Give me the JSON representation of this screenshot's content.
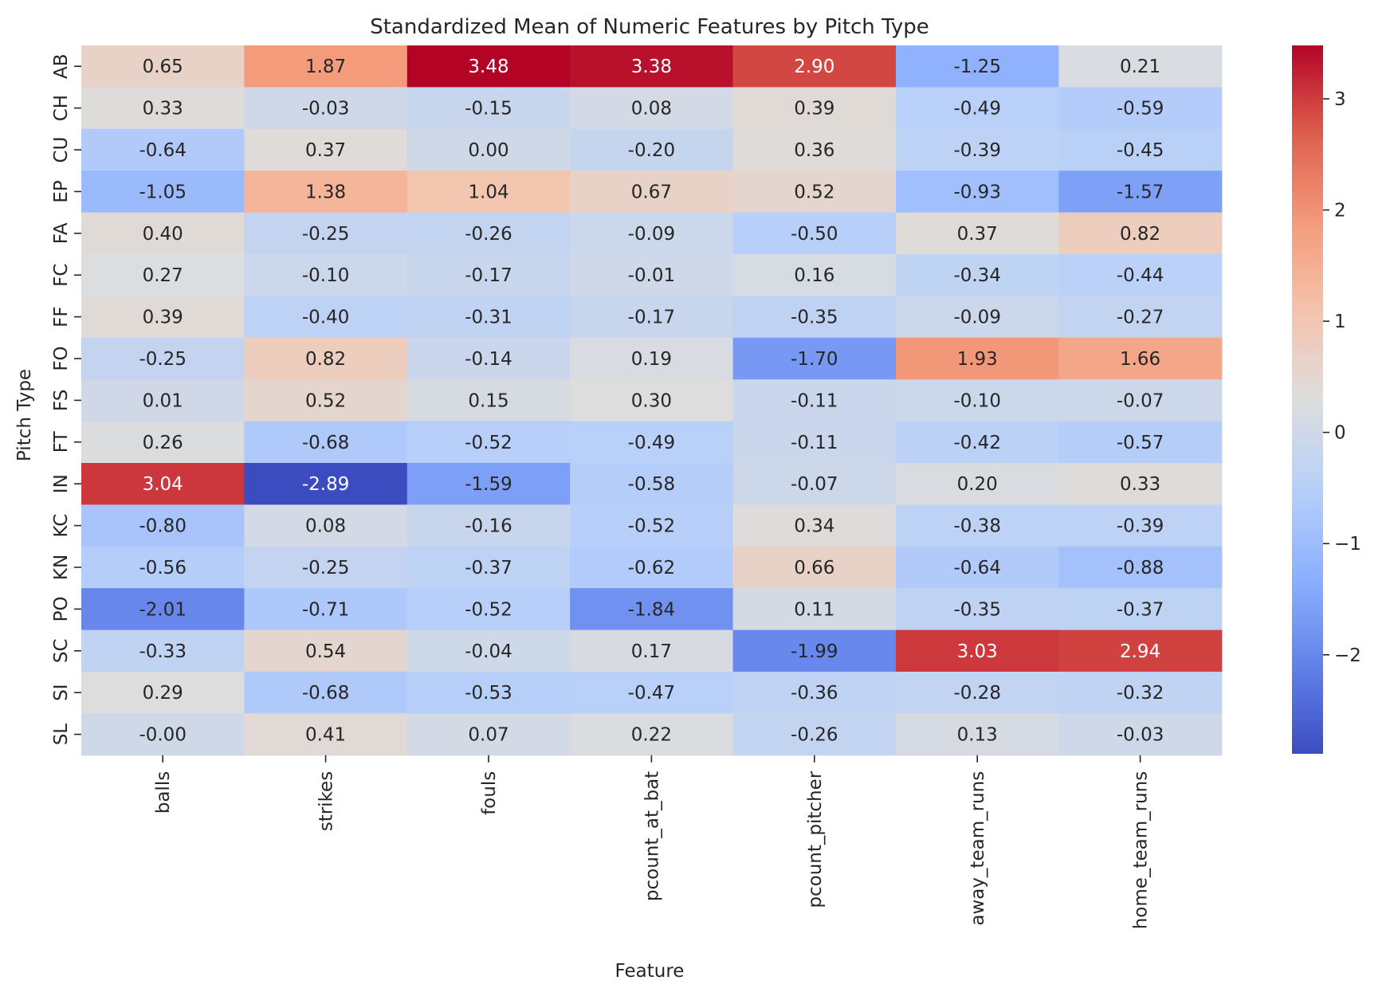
{
  "chart_data": {
    "type": "heatmap",
    "title": "Standardized Mean of Numeric Features by Pitch Type",
    "xlabel": "Feature",
    "ylabel": "Pitch Type",
    "colormap": "coolwarm",
    "color_low": "#3b4cc0",
    "color_mid": "#dddddd",
    "color_high": "#b40426",
    "vmin": -2.89,
    "vmax": 3.48,
    "colorbar_ticks": [
      "−2",
      "−1",
      "0",
      "1",
      "2",
      "3"
    ],
    "x": [
      "balls",
      "strikes",
      "fouls",
      "pcount_at_bat",
      "pcount_pitcher",
      "away_team_runs",
      "home_team_runs"
    ],
    "y": [
      "AB",
      "CH",
      "CU",
      "EP",
      "FA",
      "FC",
      "FF",
      "FO",
      "FS",
      "FT",
      "IN",
      "KC",
      "KN",
      "PO",
      "SC",
      "SI",
      "SL"
    ],
    "values": [
      [
        0.65,
        1.87,
        3.48,
        3.38,
        2.9,
        -1.25,
        0.21
      ],
      [
        0.33,
        -0.03,
        -0.15,
        0.08,
        0.39,
        -0.49,
        -0.59
      ],
      [
        -0.64,
        0.37,
        0.0,
        -0.2,
        0.36,
        -0.39,
        -0.45
      ],
      [
        -1.05,
        1.38,
        1.04,
        0.67,
        0.52,
        -0.93,
        -1.57
      ],
      [
        0.4,
        -0.25,
        -0.26,
        -0.09,
        -0.5,
        0.37,
        0.82
      ],
      [
        0.27,
        -0.1,
        -0.17,
        -0.01,
        0.16,
        -0.34,
        -0.44
      ],
      [
        0.39,
        -0.4,
        -0.31,
        -0.17,
        -0.35,
        -0.09,
        -0.27
      ],
      [
        -0.25,
        0.82,
        -0.14,
        0.19,
        -1.7,
        1.93,
        1.66
      ],
      [
        0.01,
        0.52,
        0.15,
        0.3,
        -0.11,
        -0.1,
        -0.07
      ],
      [
        0.26,
        -0.68,
        -0.52,
        -0.49,
        -0.11,
        -0.42,
        -0.57
      ],
      [
        3.04,
        -2.89,
        -1.59,
        -0.58,
        -0.07,
        0.2,
        0.33
      ],
      [
        -0.8,
        0.08,
        -0.16,
        -0.52,
        0.34,
        -0.38,
        -0.39
      ],
      [
        -0.56,
        -0.25,
        -0.37,
        -0.62,
        0.66,
        -0.64,
        -0.88
      ],
      [
        -2.01,
        -0.71,
        -0.52,
        -1.84,
        0.11,
        -0.35,
        -0.37
      ],
      [
        -0.33,
        0.54,
        -0.04,
        0.17,
        -1.99,
        3.03,
        2.94
      ],
      [
        0.29,
        -0.68,
        -0.53,
        -0.47,
        -0.36,
        -0.28,
        -0.32
      ],
      [
        -0.0,
        0.41,
        0.07,
        0.22,
        -0.26,
        0.13,
        -0.03
      ]
    ],
    "cell_labels": [
      [
        "0.65",
        "1.87",
        "3.48",
        "3.38",
        "2.90",
        "-1.25",
        "0.21"
      ],
      [
        "0.33",
        "-0.03",
        "-0.15",
        "0.08",
        "0.39",
        "-0.49",
        "-0.59"
      ],
      [
        "-0.64",
        "0.37",
        "0.00",
        "-0.20",
        "0.36",
        "-0.39",
        "-0.45"
      ],
      [
        "-1.05",
        "1.38",
        "1.04",
        "0.67",
        "0.52",
        "-0.93",
        "-1.57"
      ],
      [
        "0.40",
        "-0.25",
        "-0.26",
        "-0.09",
        "-0.50",
        "0.37",
        "0.82"
      ],
      [
        "0.27",
        "-0.10",
        "-0.17",
        "-0.01",
        "0.16",
        "-0.34",
        "-0.44"
      ],
      [
        "0.39",
        "-0.40",
        "-0.31",
        "-0.17",
        "-0.35",
        "-0.09",
        "-0.27"
      ],
      [
        "-0.25",
        "0.82",
        "-0.14",
        "0.19",
        "-1.70",
        "1.93",
        "1.66"
      ],
      [
        "0.01",
        "0.52",
        "0.15",
        "0.30",
        "-0.11",
        "-0.10",
        "-0.07"
      ],
      [
        "0.26",
        "-0.68",
        "-0.52",
        "-0.49",
        "-0.11",
        "-0.42",
        "-0.57"
      ],
      [
        "3.04",
        "-2.89",
        "-1.59",
        "-0.58",
        "-0.07",
        "0.20",
        "0.33"
      ],
      [
        "-0.80",
        "0.08",
        "-0.16",
        "-0.52",
        "0.34",
        "-0.38",
        "-0.39"
      ],
      [
        "-0.56",
        "-0.25",
        "-0.37",
        "-0.62",
        "0.66",
        "-0.64",
        "-0.88"
      ],
      [
        "-2.01",
        "-0.71",
        "-0.52",
        "-1.84",
        "0.11",
        "-0.35",
        "-0.37"
      ],
      [
        "-0.33",
        "0.54",
        "-0.04",
        "0.17",
        "-1.99",
        "3.03",
        "2.94"
      ],
      [
        "0.29",
        "-0.68",
        "-0.53",
        "-0.47",
        "-0.36",
        "-0.28",
        "-0.32"
      ],
      [
        "-0.00",
        "0.41",
        "0.07",
        "0.22",
        "-0.26",
        "0.13",
        "-0.03"
      ]
    ]
  }
}
